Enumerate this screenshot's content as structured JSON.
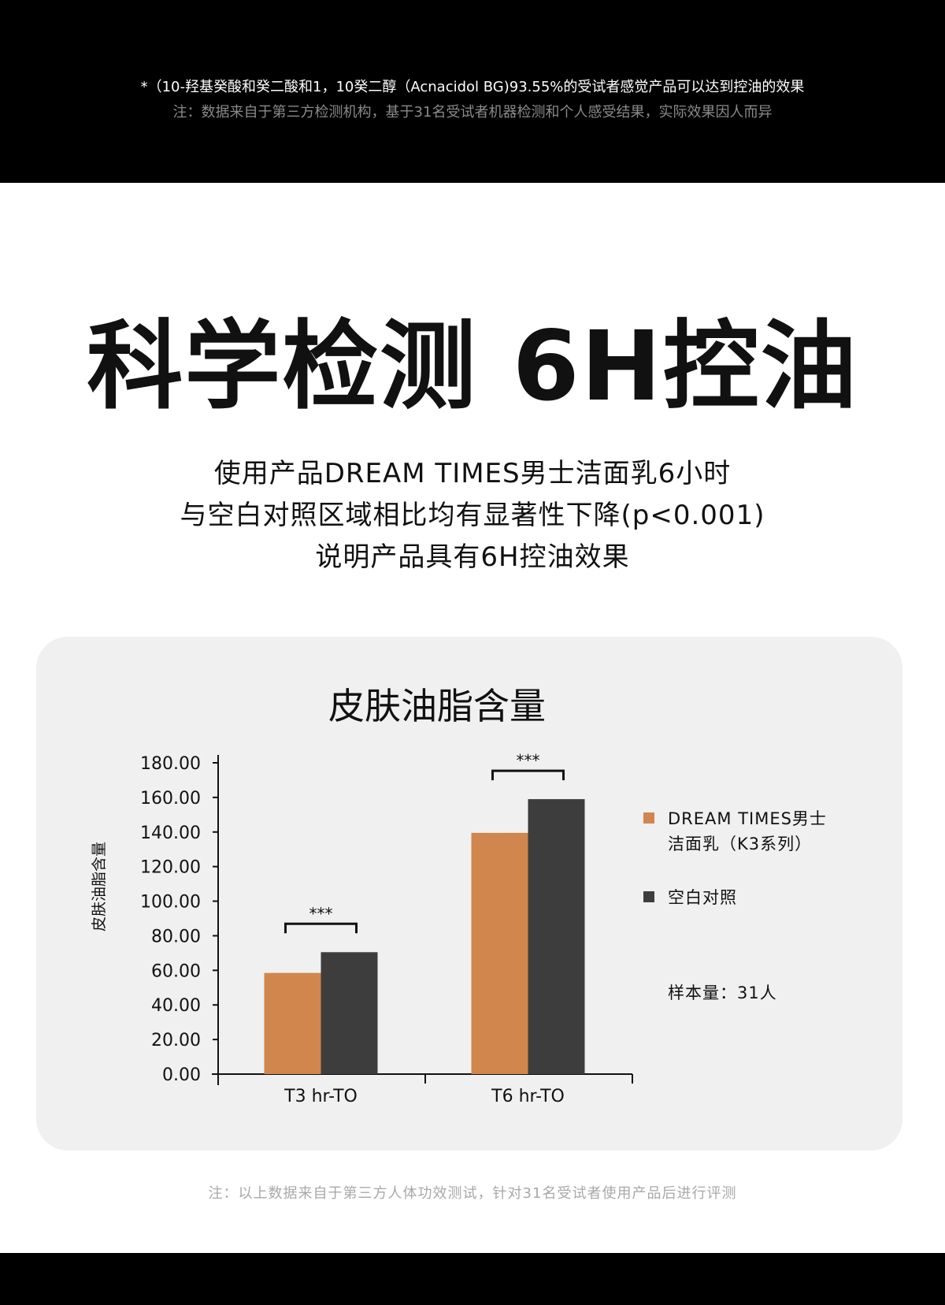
{
  "header": {
    "footnote_1": "*（10-羟基癸酸和癸二酸和1，10癸二醇（Acnacidol BG)93.55%的受试者感觉产品可以达到控油的效果",
    "footnote_2": "注：数据来自于第三方检测机构，基于31名受试者机器检测和个人感受结果，实际效果因人而异"
  },
  "hero": {
    "title": "科学检测 6H控油",
    "subtitle_lines": [
      "使用产品DREAM TIMES男士洁面乳6小时",
      "与空白对照区域相比均有显著性下降(p<0.001)",
      "说明产品具有6H控油效果"
    ]
  },
  "chart_data": {
    "type": "bar",
    "title": "皮肤油脂含量",
    "ylabel": "皮肤油脂含量",
    "xlabel": "",
    "categories": [
      "T3 hr-TO",
      "T6 hr-TO"
    ],
    "series": [
      {
        "name": "DREAM TIMES男士洁面乳（K3系列）",
        "legend_lines": [
          "DREAM TIMES男士",
          "洁面乳（K3系列）"
        ],
        "color": "#d0864c",
        "values": [
          58.5,
          139.5
        ]
      },
      {
        "name": "空白对照",
        "legend_lines": [
          "空白对照"
        ],
        "color": "#3d3d3d",
        "values": [
          70.5,
          159
        ]
      }
    ],
    "ylim": [
      0,
      180
    ],
    "yticks": [
      "0.00",
      "20.00",
      "40.00",
      "60.00",
      "80.00",
      "100.00",
      "120.00",
      "140.00",
      "160.00",
      "180.00"
    ],
    "significance": [
      "***",
      "***"
    ],
    "sample_note": "样本量：31人",
    "grid": false,
    "legend_position": "right"
  },
  "footer": {
    "note": "注：以上数据来自于第三方人体功效测试，针对31名受试者使用产品后进行评测"
  }
}
